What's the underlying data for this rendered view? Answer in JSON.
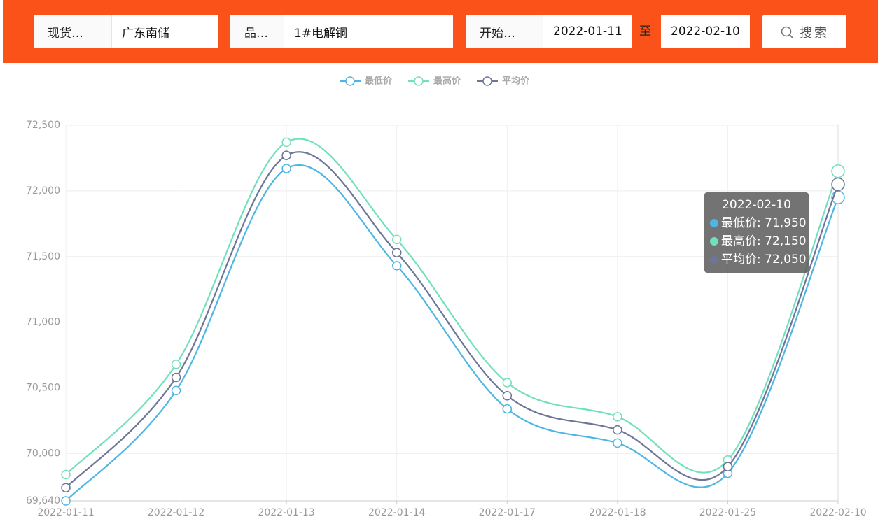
{
  "search_bar": {
    "fields": [
      {
        "label": "现货…",
        "value": "广东南储"
      },
      {
        "label": "品…",
        "value": "1#电解铜"
      }
    ],
    "date": {
      "label": "开始…",
      "start": "2022-01-11",
      "separator": "至",
      "end": "2022-02-10"
    },
    "button": "搜索"
  },
  "chart_data": {
    "type": "line",
    "smooth": true,
    "grid": true,
    "categories": [
      "2022-01-11",
      "2022-01-12",
      "2022-01-13",
      "2022-01-14",
      "2022-01-17",
      "2022-01-18",
      "2022-01-25",
      "2022-02-10"
    ],
    "series": [
      {
        "name": "最低价",
        "color": "#4fb5e3",
        "values": [
          69640,
          70480,
          72170,
          71430,
          70340,
          70080,
          69850,
          71950
        ]
      },
      {
        "name": "最高价",
        "color": "#72e0bd",
        "values": [
          69840,
          70680,
          72370,
          71630,
          70540,
          70280,
          69950,
          72150
        ]
      },
      {
        "name": "平均价",
        "color": "#6e7597",
        "values": [
          69740,
          70580,
          72270,
          71530,
          70440,
          70180,
          69900,
          72050
        ]
      }
    ],
    "ylim": [
      69640,
      72500
    ],
    "yticks": [
      {
        "value": 69640,
        "label": "69,640"
      },
      {
        "value": 70000,
        "label": "70,000"
      },
      {
        "value": 70500,
        "label": "70,500"
      },
      {
        "value": 71000,
        "label": "71,000"
      },
      {
        "value": 71500,
        "label": "71,500"
      },
      {
        "value": 72000,
        "label": "72,000"
      },
      {
        "value": 72500,
        "label": "72,500"
      }
    ],
    "tooltip": {
      "title": "2022-02-10",
      "items": [
        "最低价: 71,950",
        "最高价: 72,150",
        "平均价: 72,050"
      ]
    }
  }
}
